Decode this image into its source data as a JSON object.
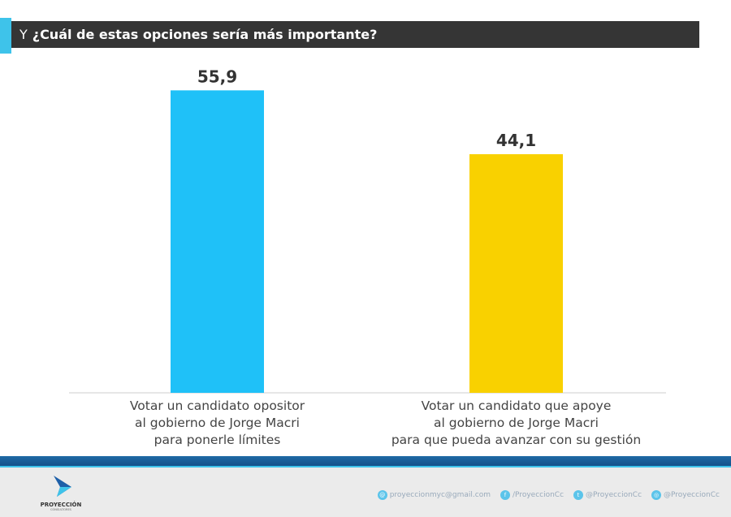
{
  "header": {
    "prefix": "Y",
    "question": "¿Cuál de estas opciones sería más importante?"
  },
  "chart_data": {
    "type": "bar",
    "categories": [
      "Votar un candidato opositor\nal gobierno de Jorge Macri\npara ponerle límites",
      "Votar un candidato que apoye\nal gobierno de Jorge Macri\npara que pueda avanzar con su gestión"
    ],
    "values": [
      55.9,
      44.1
    ],
    "value_labels": [
      "55,9",
      "44,1"
    ],
    "colors": [
      "#1fc1f8",
      "#f9d100"
    ],
    "ylim": [
      0,
      60
    ],
    "grid": false
  },
  "footer": {
    "logo_name": "PROYECCIÓN",
    "logo_sub": "CONSULTORES",
    "email": "proyeccionmyc@gmail.com",
    "facebook": "/ProyeccionCc",
    "twitter": "@ProyeccionCc",
    "instagram": "@ProyeccionCc"
  }
}
